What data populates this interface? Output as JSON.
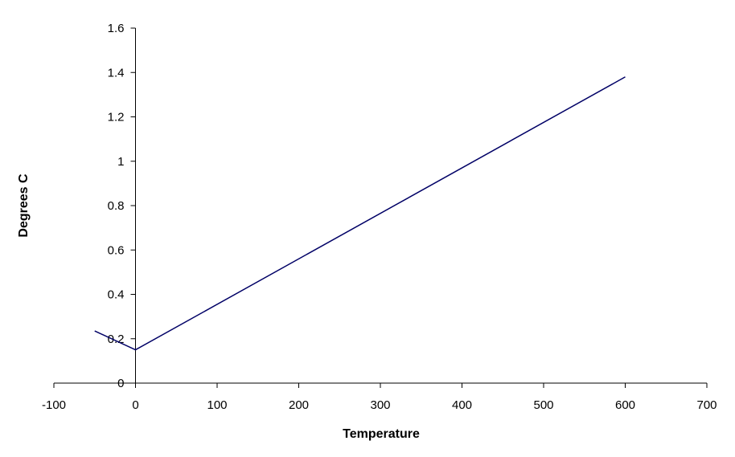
{
  "chart_data": {
    "type": "line",
    "title": "",
    "xlabel": "Temperature",
    "ylabel": "Degrees C",
    "xlim": [
      -100,
      700
    ],
    "ylim": [
      0,
      1.6
    ],
    "x_ticks": [
      "-100",
      "0",
      "100",
      "200",
      "300",
      "400",
      "500",
      "600",
      "700"
    ],
    "y_ticks": [
      "0",
      "0.2",
      "0.4",
      "0.6",
      "0.8",
      "1",
      "1.2",
      "1.4",
      "1.6"
    ],
    "grid": false,
    "legend": "none",
    "series": [
      {
        "color": "#000066",
        "x": [
          -50,
          0,
          600
        ],
        "y": [
          0.235,
          0.15,
          1.38
        ]
      }
    ]
  }
}
